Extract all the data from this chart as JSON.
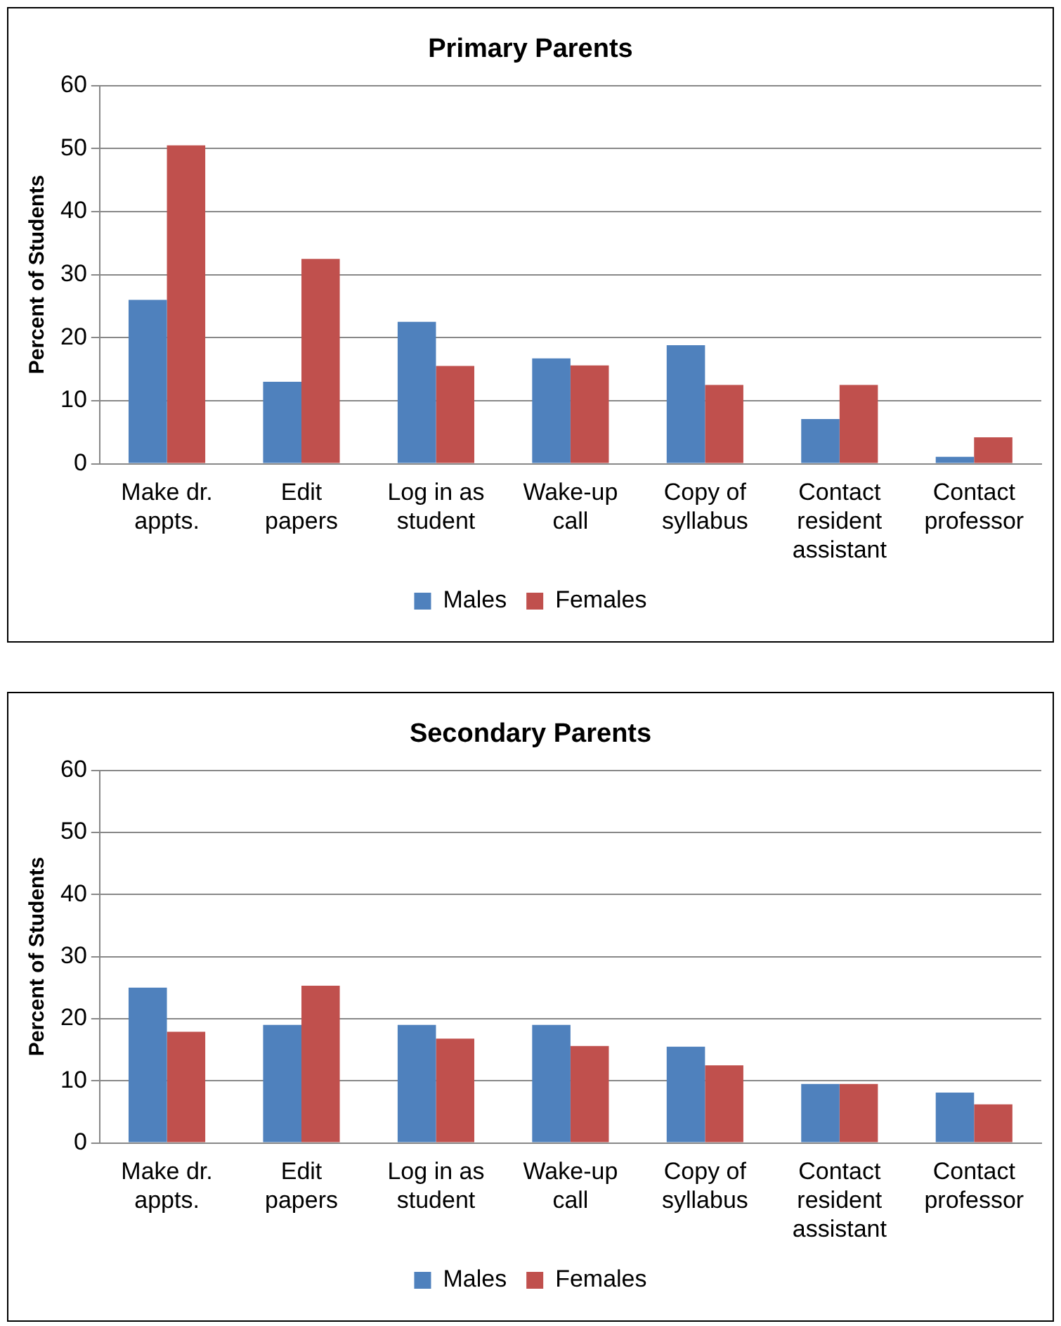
{
  "chart_data": [
    {
      "type": "bar",
      "title": "Primary Parents",
      "ylabel": "Percent of Students",
      "categories": [
        "Make dr. appts.",
        "Edit papers",
        "Log in as student",
        "Wake-up call",
        "Copy of syllabus",
        "Contact resident assistant",
        "Contact professor"
      ],
      "series": [
        {
          "name": "Males",
          "color": "#4f81bd",
          "values": [
            26,
            13,
            22.5,
            16.7,
            18.8,
            7.1,
            1.1
          ]
        },
        {
          "name": "Females",
          "color": "#c0504d",
          "values": [
            50.5,
            32.5,
            15.5,
            15.6,
            12.5,
            12.5,
            4.2
          ]
        }
      ],
      "ylim": [
        0,
        60
      ],
      "yticks": [
        0,
        10,
        20,
        30,
        40,
        50,
        60
      ],
      "grid": "y",
      "legend": "bottom"
    },
    {
      "type": "bar",
      "title": "Secondary Parents",
      "ylabel": "Percent of Students",
      "categories": [
        "Make dr. appts.",
        "Edit papers",
        "Log in as student",
        "Wake-up call",
        "Copy of syllabus",
        "Contact resident assistant",
        "Contact professor"
      ],
      "series": [
        {
          "name": "Males",
          "color": "#4f81bd",
          "values": [
            25,
            19,
            19,
            19,
            15.5,
            9.5,
            8.1
          ]
        },
        {
          "name": "Females",
          "color": "#c0504d",
          "values": [
            17.9,
            25.3,
            16.8,
            15.6,
            12.5,
            9.5,
            6.2
          ]
        }
      ],
      "ylim": [
        0,
        60
      ],
      "yticks": [
        0,
        10,
        20,
        30,
        40,
        50,
        60
      ],
      "grid": "y",
      "legend": "bottom"
    }
  ]
}
